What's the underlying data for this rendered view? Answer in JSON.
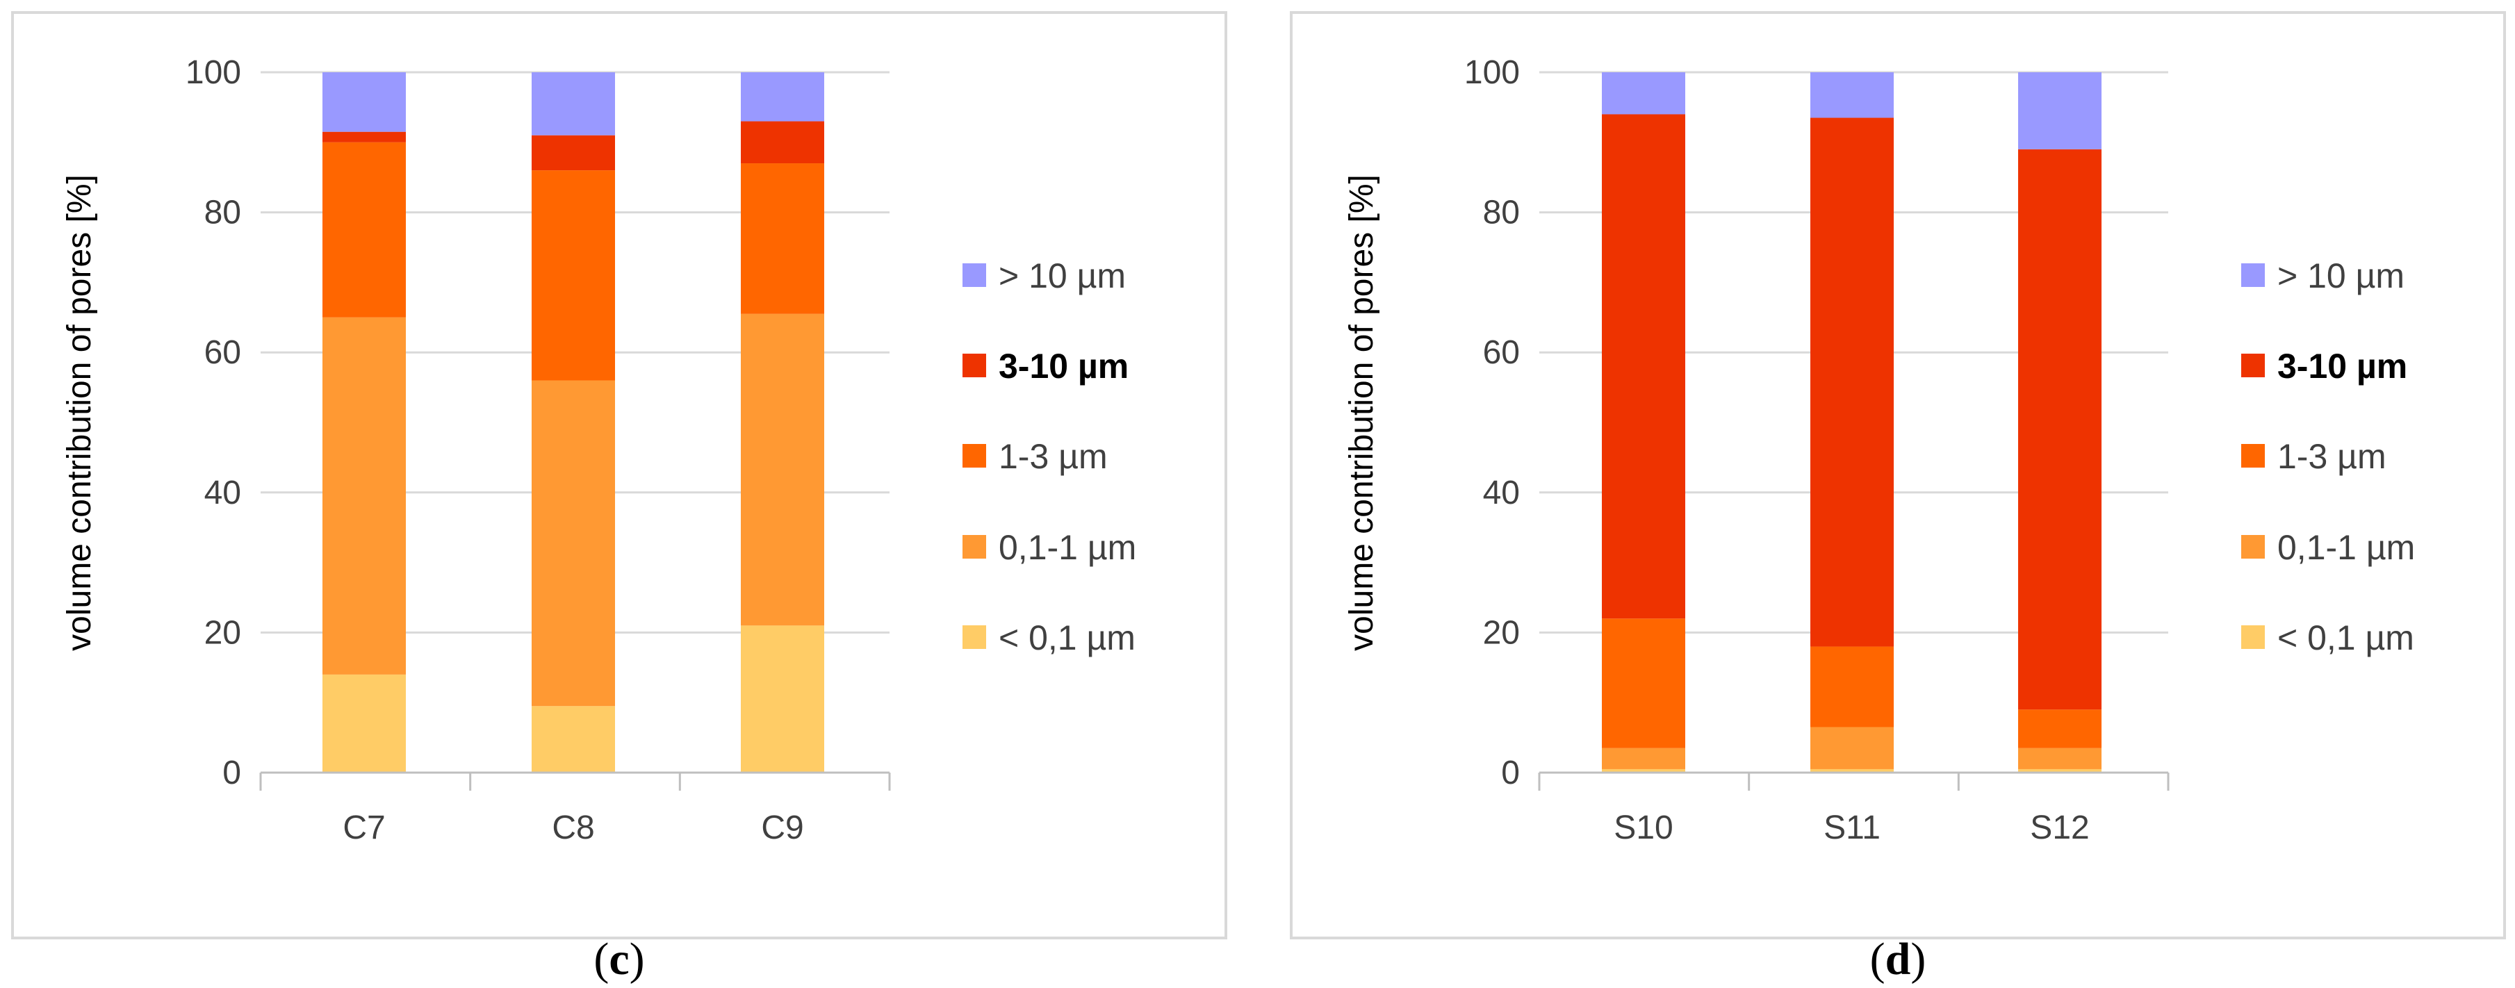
{
  "colors": {
    "gt10": "#9999FF",
    "3-10": "#EE3300",
    "1-3": "#FF6600",
    "0.1-1": "#FF9933",
    "lt0.1": "#FFCC66"
  },
  "legend": [
    {
      "key": "gt10",
      "label": "> 10 µm",
      "bold": false
    },
    {
      "key": "3-10",
      "label": "3-10 µm",
      "bold": true
    },
    {
      "key": "1-3",
      "label": "1-3 µm",
      "bold": false
    },
    {
      "key": "0.1-1",
      "label": "0,1-1 µm",
      "bold": false
    },
    {
      "key": "lt0.1",
      "label": "< 0,1 µm",
      "bold": false
    }
  ],
  "chart_data": [
    {
      "type": "bar",
      "stacked": true,
      "panel": "c",
      "caption_open": "(",
      "caption_letter": "c",
      "caption_close": ")",
      "categories": [
        "C7",
        "C8",
        "C9"
      ],
      "ylabel": "volume contribution of pores [%]",
      "ylim": [
        0,
        100
      ],
      "yticks": [
        "0",
        "20",
        "40",
        "60",
        "80",
        "100"
      ],
      "series": [
        {
          "key": "lt0.1",
          "name": "< 0,1 µm",
          "values": [
            14,
            9.5,
            21
          ]
        },
        {
          "key": "0.1-1",
          "name": "0,1-1 µm",
          "values": [
            51,
            46.5,
            44.5
          ]
        },
        {
          "key": "1-3",
          "name": "1-3 µm",
          "values": [
            25,
            30,
            21.5
          ]
        },
        {
          "key": "3-10",
          "name": "3-10 µm",
          "values": [
            1.5,
            5,
            6
          ]
        },
        {
          "key": "gt10",
          "name": "> 10 µm",
          "values": [
            8.5,
            9,
            7
          ]
        }
      ]
    },
    {
      "type": "bar",
      "stacked": true,
      "panel": "d",
      "caption_open": "(",
      "caption_letter": "d",
      "caption_close": ")",
      "categories": [
        "S10",
        "S11",
        "S12"
      ],
      "ylabel": "volume contribution of pores [%]",
      "ylim": [
        0,
        100
      ],
      "yticks": [
        "0",
        "20",
        "40",
        "60",
        "80",
        "100"
      ],
      "series": [
        {
          "key": "lt0.1",
          "name": "< 0,1 µm",
          "values": [
            0.5,
            0.5,
            0.5
          ]
        },
        {
          "key": "0.1-1",
          "name": "0,1-1 µm",
          "values": [
            3,
            6,
            3
          ]
        },
        {
          "key": "1-3",
          "name": "1-3 µm",
          "values": [
            18.5,
            11.5,
            5.5
          ]
        },
        {
          "key": "3-10",
          "name": "3-10 µm",
          "values": [
            72,
            75.5,
            80
          ]
        },
        {
          "key": "gt10",
          "name": "> 10 µm",
          "values": [
            6,
            6.5,
            11
          ]
        }
      ]
    }
  ]
}
